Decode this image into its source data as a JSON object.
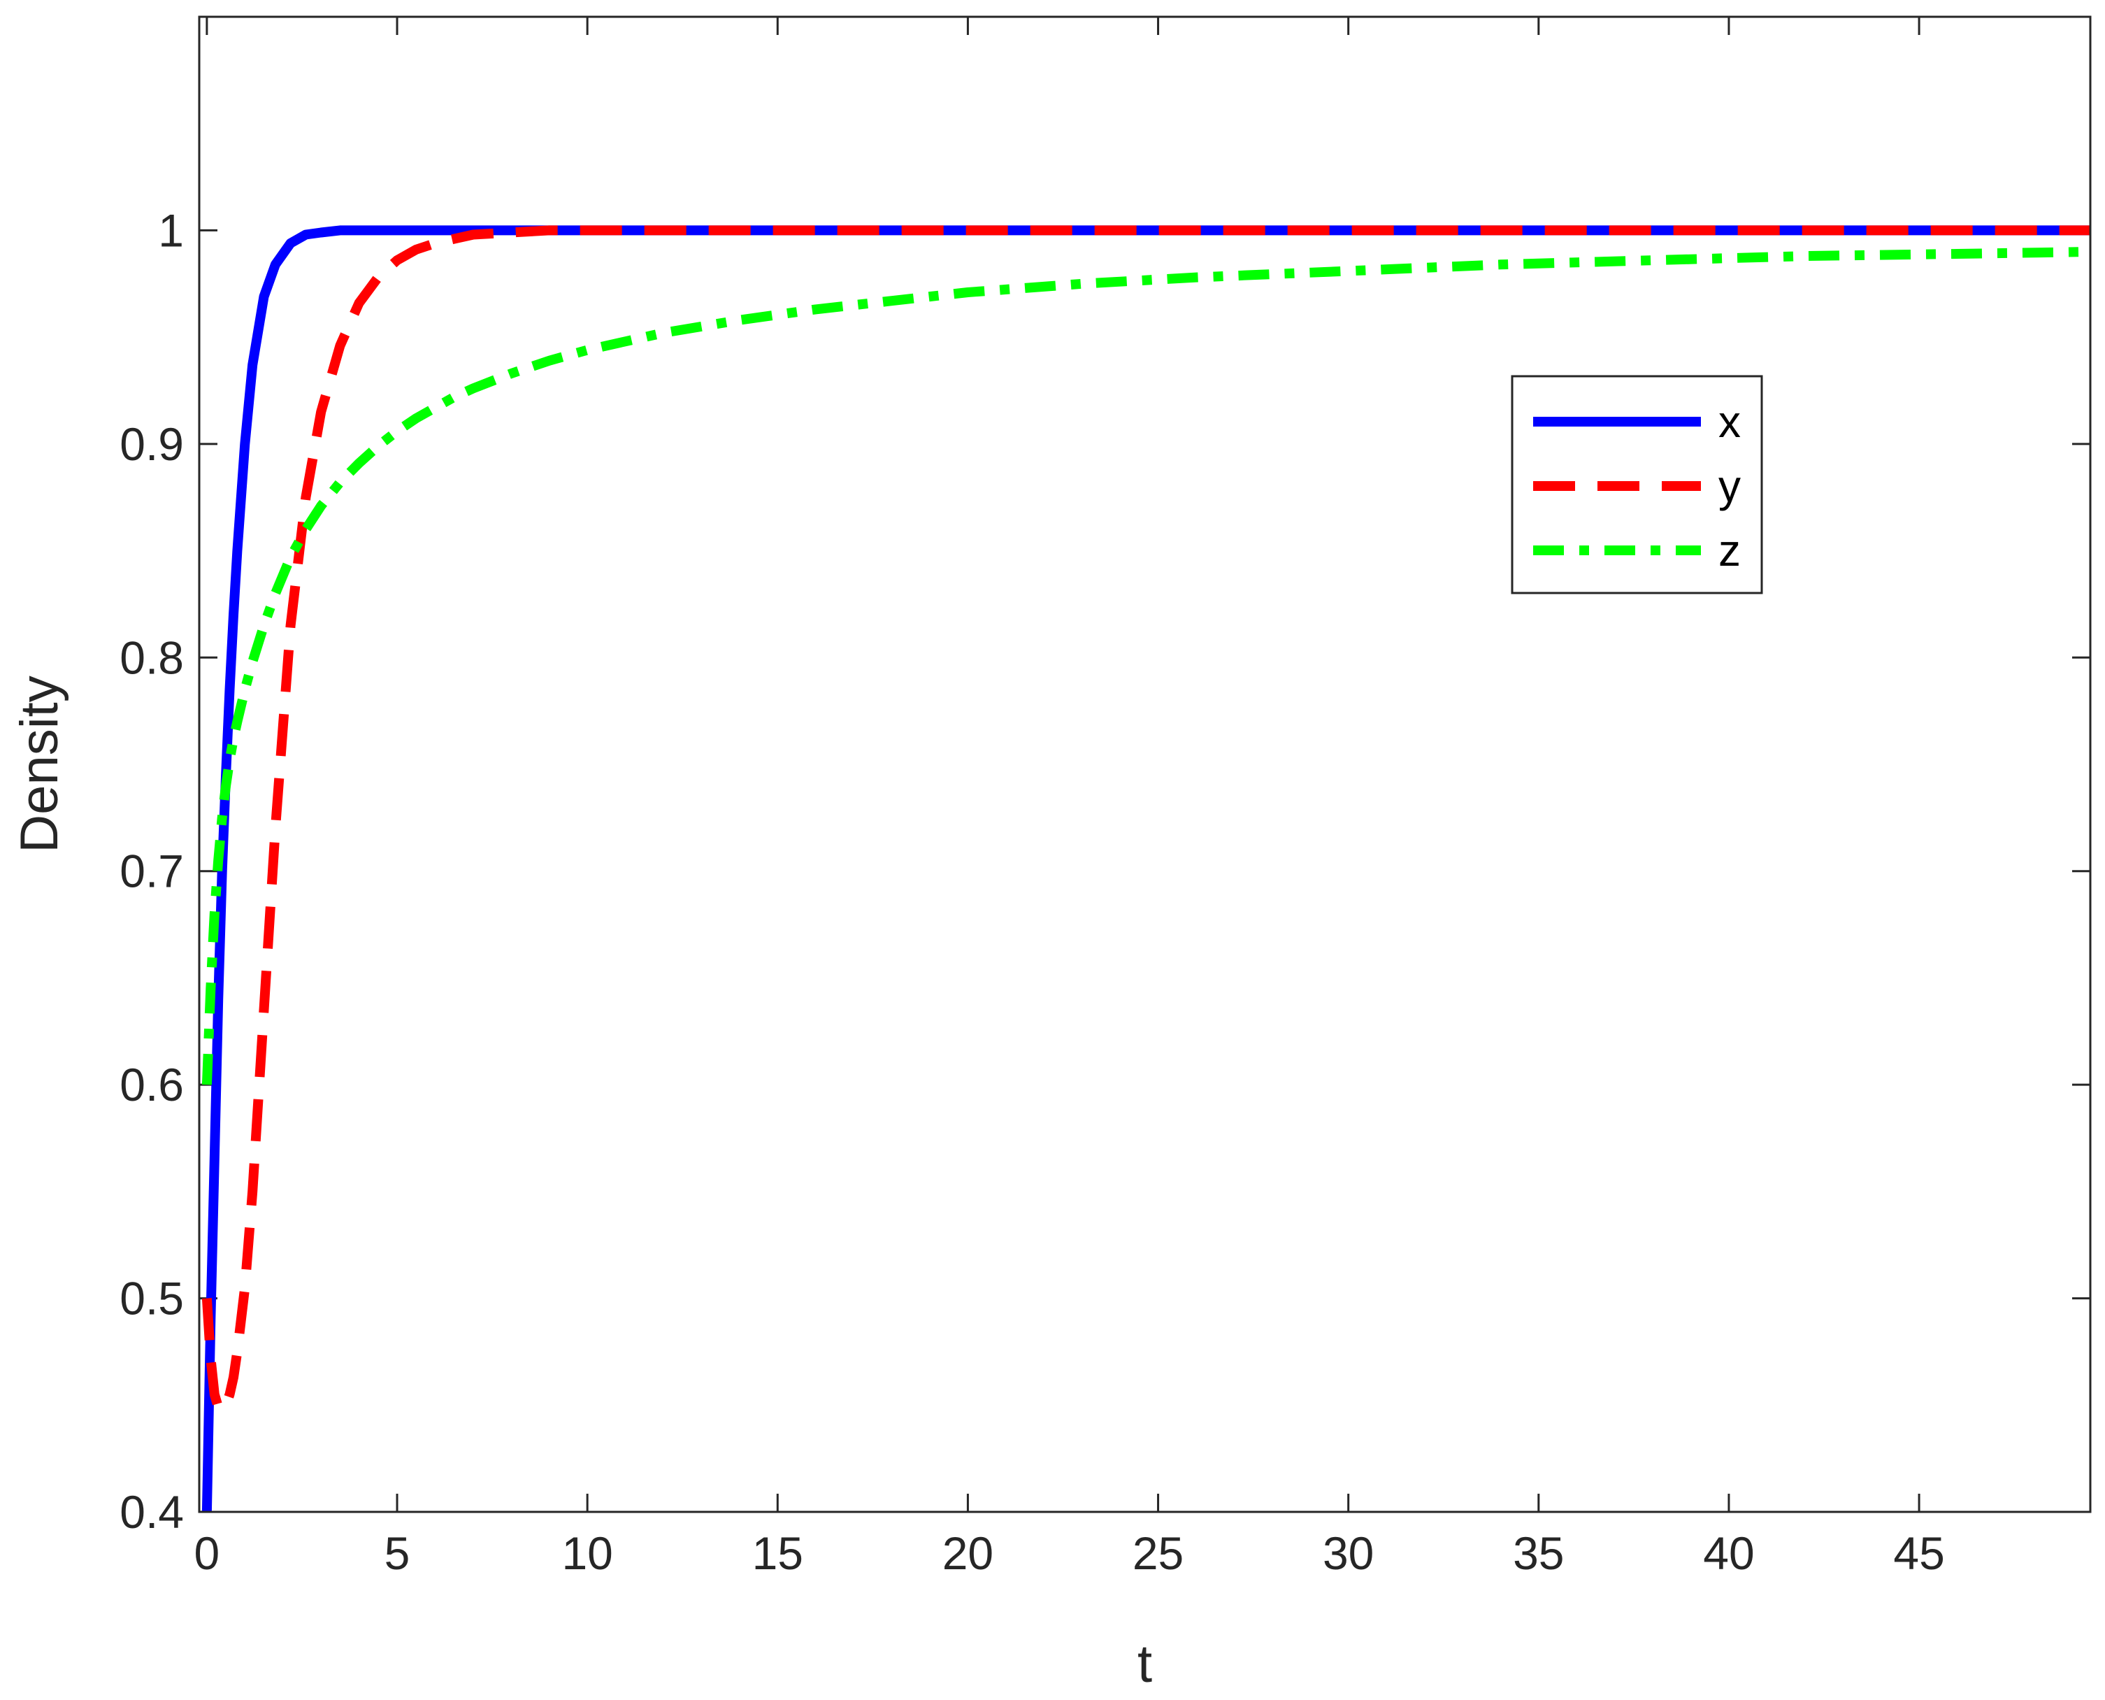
{
  "chart_data": {
    "type": "line",
    "title": "",
    "xlabel": "t",
    "ylabel": "Density",
    "xlim": [
      -0.2,
      49.5
    ],
    "ylim": [
      0.4,
      1.1
    ],
    "xticks": [
      0,
      5,
      10,
      15,
      20,
      25,
      30,
      35,
      40,
      45
    ],
    "xtick_labels": [
      "0",
      "5",
      "10",
      "15",
      "20",
      "25",
      "30",
      "35",
      "40",
      "45"
    ],
    "yticks": [
      0.4,
      0.5,
      0.6,
      0.7,
      0.8,
      0.9,
      1.0
    ],
    "ytick_labels": [
      "0.4",
      "0.5",
      "0.6",
      "0.7",
      "0.8",
      "0.9",
      "1"
    ],
    "grid": false,
    "legend_position": "upper-right",
    "x": [
      0,
      0.1,
      0.2,
      0.3,
      0.4,
      0.5,
      0.6,
      0.7,
      0.8,
      1,
      1.2,
      1.5,
      1.8,
      2.2,
      2.6,
      3,
      3.5,
      4,
      4.5,
      5,
      5.5,
      6,
      6.5,
      7,
      8,
      9,
      10,
      12,
      14,
      16,
      18,
      20,
      23,
      26,
      30,
      34,
      38,
      42,
      46,
      49.5
    ],
    "series": [
      {
        "name": "x",
        "color": "#0000ff",
        "style": "solid",
        "values": [
          0.4,
          0.49,
          0.565,
          0.64,
          0.7,
          0.745,
          0.785,
          0.82,
          0.85,
          0.9,
          0.937,
          0.969,
          0.984,
          0.994,
          0.998,
          0.999,
          1.0,
          1.0,
          1.0,
          1.0,
          1.0,
          1.0,
          1.0,
          1.0,
          1.0,
          1.0,
          1.0,
          1.0,
          1.0,
          1.0,
          1.0,
          1.0,
          1.0,
          1.0,
          1.0,
          1.0,
          1.0,
          1.0,
          1.0,
          1.0
        ]
      },
      {
        "name": "y",
        "color": "#ff0000",
        "style": "dashed",
        "values": [
          0.5,
          0.472,
          0.455,
          0.449,
          0.448,
          0.45,
          0.455,
          0.463,
          0.475,
          0.505,
          0.55,
          0.635,
          0.72,
          0.815,
          0.875,
          0.915,
          0.946,
          0.966,
          0.978,
          0.986,
          0.991,
          0.994,
          0.996,
          0.998,
          0.999,
          1.0,
          1.0,
          1.0,
          1.0,
          1.0,
          1.0,
          1.0,
          1.0,
          1.0,
          1.0,
          1.0,
          1.0,
          1.0,
          1.0,
          1.0
        ]
      },
      {
        "name": "z",
        "color": "#00ff00",
        "style": "dash-dot",
        "values": [
          0.6,
          0.645,
          0.68,
          0.705,
          0.725,
          0.74,
          0.752,
          0.762,
          0.77,
          0.785,
          0.798,
          0.815,
          0.83,
          0.847,
          0.86,
          0.871,
          0.882,
          0.891,
          0.899,
          0.906,
          0.912,
          0.917,
          0.922,
          0.926,
          0.933,
          0.939,
          0.944,
          0.952,
          0.958,
          0.963,
          0.967,
          0.971,
          0.975,
          0.978,
          0.981,
          0.984,
          0.986,
          0.988,
          0.989,
          0.99
        ]
      }
    ]
  }
}
